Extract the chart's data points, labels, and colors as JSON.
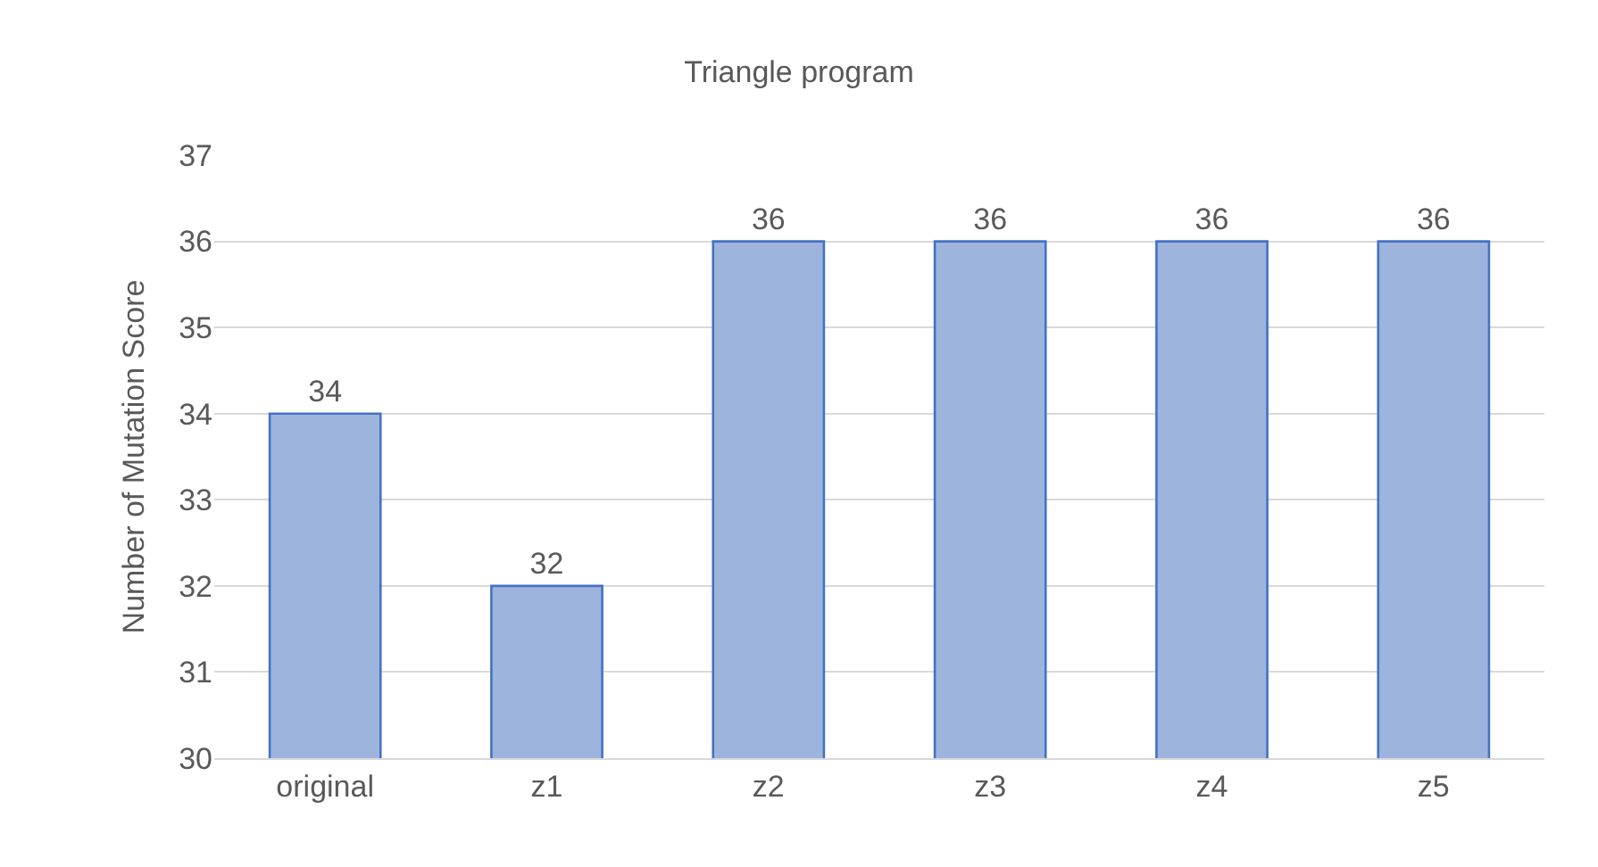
{
  "chart_data": {
    "type": "bar",
    "title": "Triangle program",
    "ylabel": "Number of Mutation Score",
    "categories": [
      "original",
      "z1",
      "z2",
      "z3",
      "z4",
      "z5"
    ],
    "values": [
      34,
      32,
      36,
      36,
      36,
      36
    ],
    "color": "#9db4dc",
    "ylim": [
      30,
      37
    ],
    "yticks": [
      30,
      31,
      32,
      33,
      34,
      35,
      36,
      37
    ],
    "grid": "y",
    "data_labels": true,
    "legend": false
  }
}
